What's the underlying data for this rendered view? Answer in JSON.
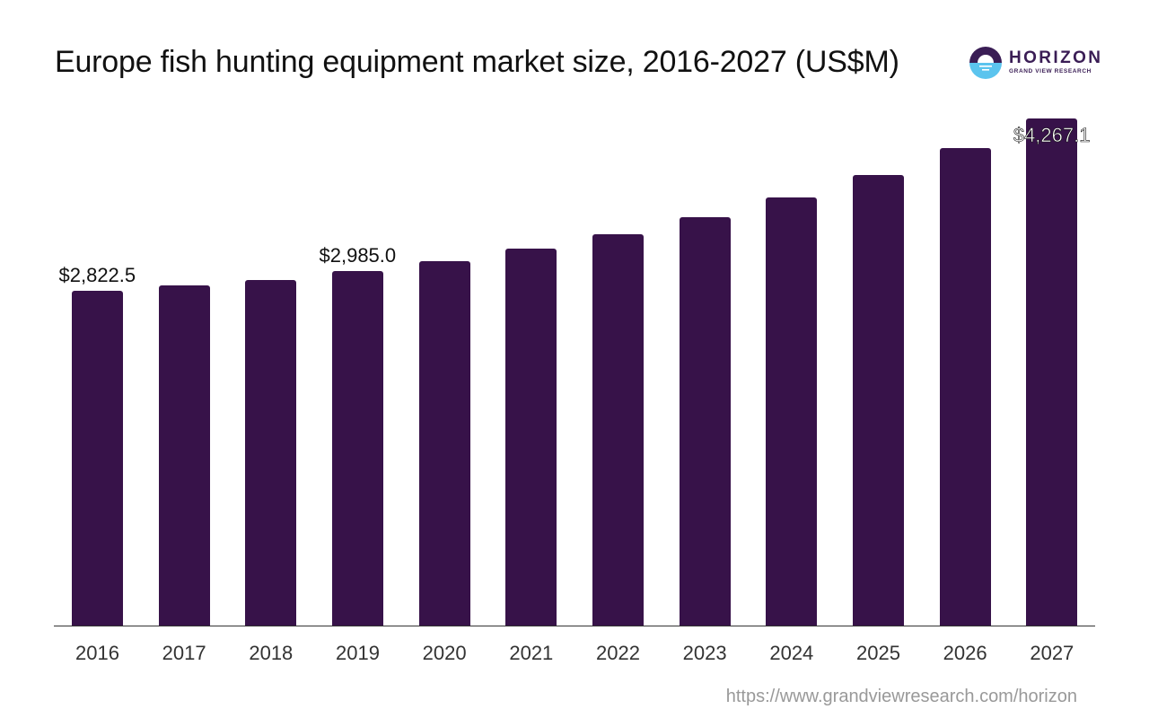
{
  "header": {
    "title": "Europe fish hunting equipment market size, 2016-2027 (US$M)",
    "logo": {
      "name": "HORIZON",
      "subtitle": "GRAND VIEW RESEARCH"
    }
  },
  "footer": {
    "source": "https://www.grandviewresearch.com/horizon"
  },
  "colors": {
    "bar": "#371249",
    "axis": "#333333",
    "logo_dark": "#3a1d55",
    "logo_light": "#5bc4ee"
  },
  "chart_data": {
    "type": "bar",
    "title": "Europe fish hunting equipment market size, 2016-2027 (US$M)",
    "xlabel": "",
    "ylabel": "US$M",
    "categories": [
      "2016",
      "2017",
      "2018",
      "2019",
      "2020",
      "2021",
      "2022",
      "2023",
      "2024",
      "2025",
      "2026",
      "2027"
    ],
    "values": [
      2822.5,
      2868,
      2913,
      2985.0,
      3072,
      3177,
      3298,
      3441,
      3607,
      3796,
      4015,
      4267.1
    ],
    "data_labels": {
      "2016": "$2,822.5",
      "2019": "$2,985.0",
      "2027": "$4,267.1"
    },
    "ylim": [
      0,
      4267.1
    ],
    "grid": false,
    "legend": null
  }
}
